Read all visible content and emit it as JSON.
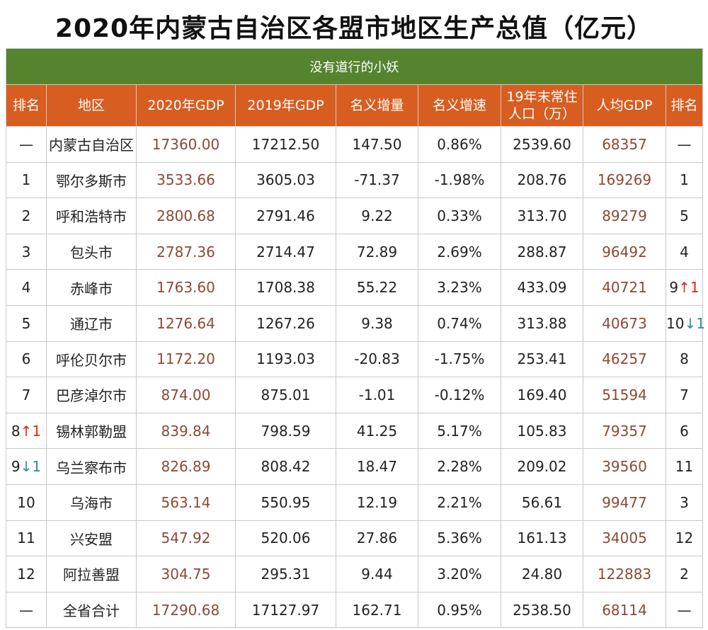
{
  "title": "2020年内蒙古自治区各盟市地区生产总值（亿元）",
  "subtitle": "没有道行的小妖",
  "headers": [
    "排名",
    "地区",
    "2020年GDP",
    "2019年GDP",
    "名义增量",
    "名义增速",
    "19年末常住人口（万）",
    "人均GDP",
    "排名"
  ],
  "rows": [
    {
      "rank": "—",
      "rank_change": "",
      "region": "内蒙古自治区",
      "gdp2020": "17360.00",
      "gdp2019": "17212.50",
      "increase": "147.50",
      "growth": "0.86%",
      "population": "2539.60",
      "gdp_per_capita": "68357",
      "pc_rank": "—",
      "pc_rank_change": ""
    },
    {
      "rank": "1",
      "rank_change": "",
      "region": "鄂尔多斯市",
      "gdp2020": "3533.66",
      "gdp2019": "3605.03",
      "increase": "-71.37",
      "growth": "-1.98%",
      "population": "208.76",
      "gdp_per_capita": "169269",
      "pc_rank": "1",
      "pc_rank_change": ""
    },
    {
      "rank": "2",
      "rank_change": "",
      "region": "呼和浩特市",
      "gdp2020": "2800.68",
      "gdp2019": "2791.46",
      "increase": "9.22",
      "growth": "0.33%",
      "population": "313.70",
      "gdp_per_capita": "89279",
      "pc_rank": "5",
      "pc_rank_change": ""
    },
    {
      "rank": "3",
      "rank_change": "",
      "region": "包头市",
      "gdp2020": "2787.36",
      "gdp2019": "2714.47",
      "increase": "72.89",
      "growth": "2.69%",
      "population": "288.87",
      "gdp_per_capita": "96492",
      "pc_rank": "4",
      "pc_rank_change": ""
    },
    {
      "rank": "4",
      "rank_change": "",
      "region": "赤峰市",
      "gdp2020": "1763.60",
      "gdp2019": "1708.38",
      "increase": "55.22",
      "growth": "3.23%",
      "population": "433.09",
      "gdp_per_capita": "40721",
      "pc_rank": "9",
      "pc_rank_change": "↑1"
    },
    {
      "rank": "5",
      "rank_change": "",
      "region": "通辽市",
      "gdp2020": "1276.64",
      "gdp2019": "1267.26",
      "increase": "9.38",
      "growth": "0.74%",
      "population": "313.88",
      "gdp_per_capita": "40673",
      "pc_rank": "10",
      "pc_rank_change": "↓1"
    },
    {
      "rank": "6",
      "rank_change": "",
      "region": "呼伦贝尔市",
      "gdp2020": "1172.20",
      "gdp2019": "1193.03",
      "increase": "-20.83",
      "growth": "-1.75%",
      "population": "253.41",
      "gdp_per_capita": "46257",
      "pc_rank": "8",
      "pc_rank_change": ""
    },
    {
      "rank": "7",
      "rank_change": "",
      "region": "巴彦淖尔市",
      "gdp2020": "874.00",
      "gdp2019": "875.01",
      "increase": "-1.01",
      "growth": "-0.12%",
      "population": "169.40",
      "gdp_per_capita": "51594",
      "pc_rank": "7",
      "pc_rank_change": ""
    },
    {
      "rank": "8",
      "rank_change": "↑1",
      "region": "锡林郭勒盟",
      "gdp2020": "839.84",
      "gdp2019": "798.59",
      "increase": "41.25",
      "growth": "5.17%",
      "population": "105.83",
      "gdp_per_capita": "79357",
      "pc_rank": "6",
      "pc_rank_change": ""
    },
    {
      "rank": "9",
      "rank_change": "↓1",
      "region": "乌兰察布市",
      "gdp2020": "826.89",
      "gdp2019": "808.42",
      "increase": "18.47",
      "growth": "2.28%",
      "population": "209.02",
      "gdp_per_capita": "39560",
      "pc_rank": "11",
      "pc_rank_change": ""
    },
    {
      "rank": "10",
      "rank_change": "",
      "region": "乌海市",
      "gdp2020": "563.14",
      "gdp2019": "550.95",
      "increase": "12.19",
      "growth": "2.21%",
      "population": "56.61",
      "gdp_per_capita": "99477",
      "pc_rank": "3",
      "pc_rank_change": ""
    },
    {
      "rank": "11",
      "rank_change": "",
      "region": "兴安盟",
      "gdp2020": "547.92",
      "gdp2019": "520.06",
      "increase": "27.86",
      "growth": "5.36%",
      "population": "161.13",
      "gdp_per_capita": "34005",
      "pc_rank": "12",
      "pc_rank_change": ""
    },
    {
      "rank": "12",
      "rank_change": "",
      "region": "阿拉善盟",
      "gdp2020": "304.75",
      "gdp2019": "295.31",
      "increase": "9.44",
      "growth": "3.20%",
      "population": "24.80",
      "gdp_per_capita": "122883",
      "pc_rank": "2",
      "pc_rank_change": ""
    },
    {
      "rank": "—",
      "rank_change": "",
      "region": "全省合计",
      "gdp2020": "17290.68",
      "gdp2019": "17127.97",
      "increase": "162.71",
      "growth": "0.95%",
      "population": "2538.50",
      "gdp_per_capita": "68114",
      "pc_rank": "—",
      "pc_rank_change": ""
    }
  ],
  "colors": {
    "subtitle_bg": "#55842f",
    "header_bg": "#d85d20",
    "up_arrow": "#e0261e",
    "down_arrow": "#2f8d8a",
    "value_text": "#8a4a33"
  }
}
